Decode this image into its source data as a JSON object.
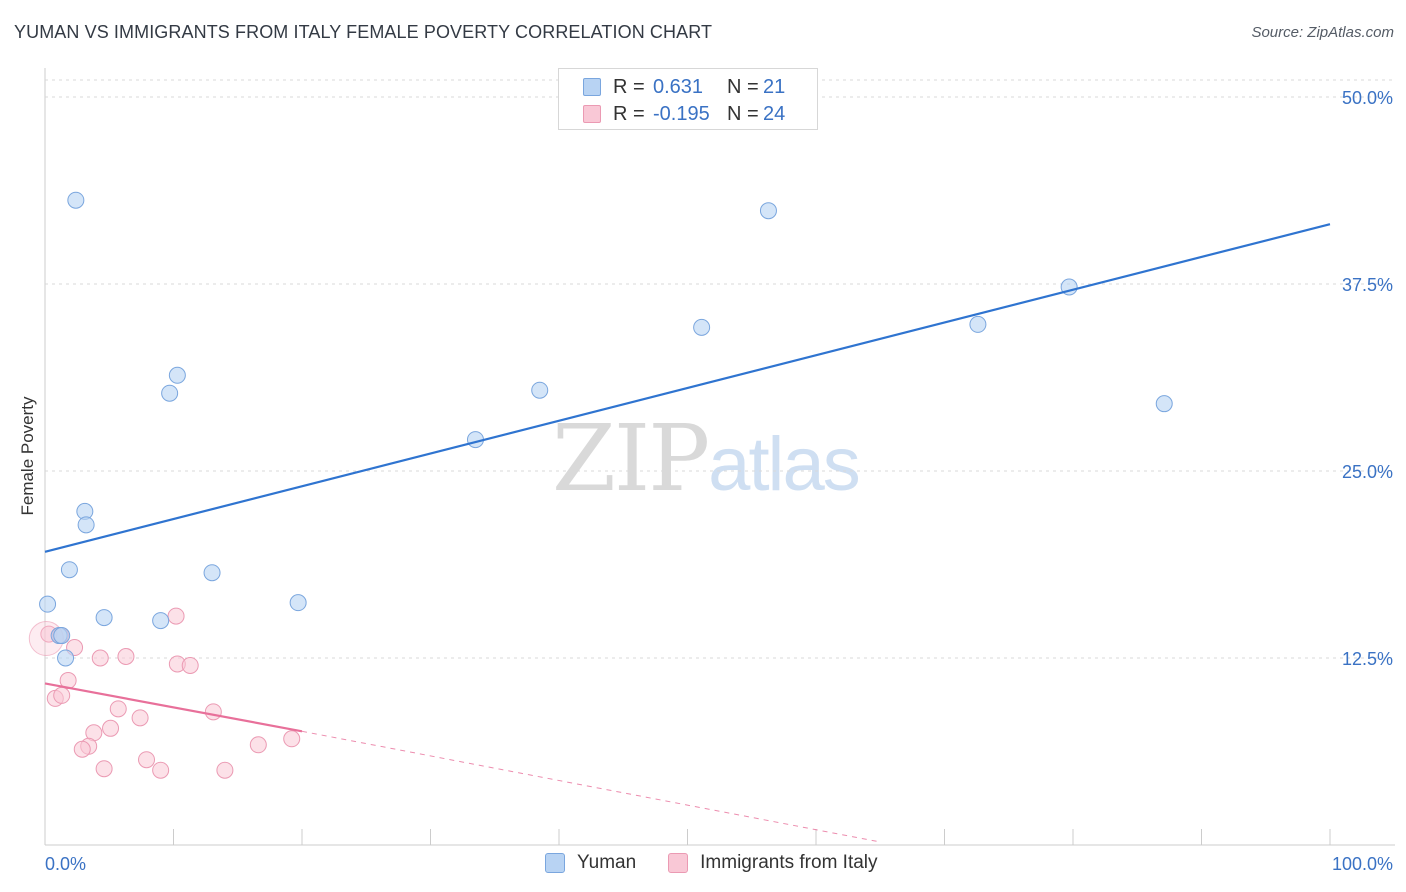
{
  "header": {
    "title": "YUMAN VS IMMIGRANTS FROM ITALY FEMALE POVERTY CORRELATION CHART",
    "source": "Source: ZipAtlas.com"
  },
  "legend": {
    "series1": {
      "r_label": "R =",
      "r_value": "0.631",
      "n_label": "N =",
      "n_value": "21"
    },
    "series2": {
      "r_label": "R =",
      "r_value": "-0.195",
      "n_label": "N =",
      "n_value": "24"
    }
  },
  "bottom_legend": {
    "series1": "Yuman",
    "series2": "Immigrants from Italy"
  },
  "watermark": {
    "zip": "ZIP",
    "atlas": "atlas"
  },
  "colors": {
    "blue_fill": "#b8d3f3",
    "blue_stroke": "#7aa6de",
    "blue_line": "#2f74d0",
    "pink_fill": "#f9c8d6",
    "pink_stroke": "#eb9ab3",
    "pink_line": "#e8709a",
    "grid": "#d9d9d9",
    "tick_label": "#3a72c4"
  },
  "chart_data": {
    "type": "scatter",
    "title": "YUMAN VS IMMIGRANTS FROM ITALY FEMALE POVERTY CORRELATION CHART",
    "xlabel": "",
    "ylabel": "Female Poverty",
    "xlim": [
      0,
      100
    ],
    "ylim": [
      0,
      50
    ],
    "x_tick_labels": [
      "0.0%",
      "100.0%"
    ],
    "y_ticks": [
      12.5,
      25.0,
      37.5,
      50.0
    ],
    "y_tick_labels": [
      "12.5%",
      "25.0%",
      "37.5%",
      "50.0%"
    ],
    "grid": true,
    "legend_position": "top-center",
    "series": [
      {
        "name": "Yuman",
        "R": 0.631,
        "N": 21,
        "points": [
          {
            "x": 2.4,
            "y": 43.1
          },
          {
            "x": 10.3,
            "y": 31.4
          },
          {
            "x": 9.7,
            "y": 30.2
          },
          {
            "x": 3.1,
            "y": 22.3
          },
          {
            "x": 3.2,
            "y": 21.4
          },
          {
            "x": 1.9,
            "y": 18.4
          },
          {
            "x": 13.0,
            "y": 18.2
          },
          {
            "x": 0.2,
            "y": 16.1
          },
          {
            "x": 19.7,
            "y": 16.2
          },
          {
            "x": 4.6,
            "y": 15.2
          },
          {
            "x": 9.0,
            "y": 15.0
          },
          {
            "x": 1.1,
            "y": 14.0
          },
          {
            "x": 1.6,
            "y": 12.5
          },
          {
            "x": 33.5,
            "y": 27.1
          },
          {
            "x": 38.5,
            "y": 30.4
          },
          {
            "x": 51.1,
            "y": 34.6
          },
          {
            "x": 56.3,
            "y": 42.4
          },
          {
            "x": 72.6,
            "y": 34.8
          },
          {
            "x": 79.7,
            "y": 37.3
          },
          {
            "x": 87.1,
            "y": 29.5
          },
          {
            "x": 1.3,
            "y": 14.0
          }
        ],
        "trend": {
          "x": [
            0,
            100
          ],
          "y": [
            19.6,
            41.5
          ]
        }
      },
      {
        "name": "Immigrants from Italy",
        "R": -0.195,
        "N": 24,
        "points": [
          {
            "x": 0.3,
            "y": 14.1
          },
          {
            "x": 1.2,
            "y": 14.0
          },
          {
            "x": 2.3,
            "y": 13.2
          },
          {
            "x": 4.3,
            "y": 12.5
          },
          {
            "x": 6.3,
            "y": 12.6
          },
          {
            "x": 1.8,
            "y": 11.0
          },
          {
            "x": 10.2,
            "y": 15.3
          },
          {
            "x": 10.3,
            "y": 12.1
          },
          {
            "x": 11.3,
            "y": 12.0
          },
          {
            "x": 0.8,
            "y": 9.8
          },
          {
            "x": 1.3,
            "y": 10.0
          },
          {
            "x": 5.7,
            "y": 9.1
          },
          {
            "x": 7.4,
            "y": 8.5
          },
          {
            "x": 13.1,
            "y": 8.9
          },
          {
            "x": 5.1,
            "y": 7.8
          },
          {
            "x": 3.8,
            "y": 7.5
          },
          {
            "x": 3.4,
            "y": 6.6
          },
          {
            "x": 2.9,
            "y": 6.4
          },
          {
            "x": 16.6,
            "y": 6.7
          },
          {
            "x": 19.2,
            "y": 7.1
          },
          {
            "x": 7.9,
            "y": 5.7
          },
          {
            "x": 4.6,
            "y": 5.1
          },
          {
            "x": 9.0,
            "y": 5.0
          },
          {
            "x": 14.0,
            "y": 5.0
          }
        ],
        "trend": {
          "x": [
            0,
            20
          ],
          "y": [
            10.8,
            7.6
          ],
          "dashed_to": {
            "x": 65,
            "y": 0.2
          }
        }
      }
    ]
  }
}
